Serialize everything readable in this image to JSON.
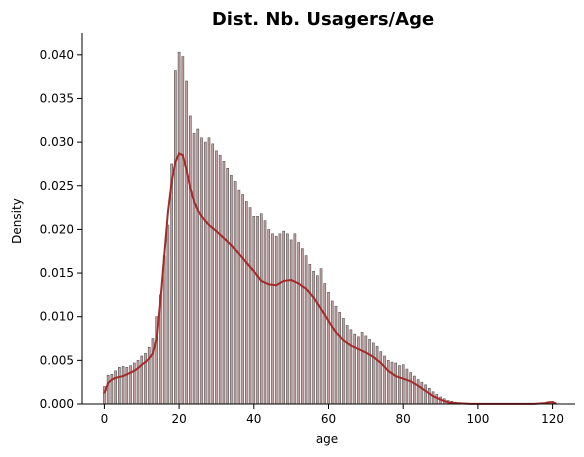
{
  "chart_data": {
    "type": "bar",
    "title": "Dist. Nb. Usagers/Age",
    "xlabel": "age",
    "ylabel": "Density",
    "xlim": [
      -6,
      126
    ],
    "ylim": [
      0,
      0.0425
    ],
    "x_ticks": [
      0,
      20,
      40,
      60,
      80,
      100,
      120
    ],
    "y_ticks": [
      0.0,
      0.005,
      0.01,
      0.015,
      0.02,
      0.025,
      0.03,
      0.035,
      0.04
    ],
    "y_tick_labels": [
      "0.000",
      "0.005",
      "0.010",
      "0.015",
      "0.020",
      "0.025",
      "0.030",
      "0.035",
      "0.040"
    ],
    "grid": false,
    "bar_color": "#bc8f8f",
    "bar_edge_color": "#555555",
    "kde_color": "#a52a2a",
    "histogram": {
      "ages": [
        0,
        1,
        2,
        3,
        4,
        5,
        6,
        7,
        8,
        9,
        10,
        11,
        12,
        13,
        14,
        15,
        16,
        17,
        18,
        19,
        20,
        21,
        22,
        23,
        24,
        25,
        26,
        27,
        28,
        29,
        30,
        31,
        32,
        33,
        34,
        35,
        36,
        37,
        38,
        39,
        40,
        41,
        42,
        43,
        44,
        45,
        46,
        47,
        48,
        49,
        50,
        51,
        52,
        53,
        54,
        55,
        56,
        57,
        58,
        59,
        60,
        61,
        62,
        63,
        64,
        65,
        66,
        67,
        68,
        69,
        70,
        71,
        72,
        73,
        74,
        75,
        76,
        77,
        78,
        79,
        80,
        81,
        82,
        83,
        84,
        85,
        86,
        87,
        88,
        89,
        90,
        91,
        92,
        93,
        94,
        95,
        96,
        97,
        98,
        99,
        100,
        101,
        102,
        103,
        104,
        105,
        106,
        107,
        108,
        109,
        110,
        111,
        112,
        113,
        114,
        115,
        116,
        117,
        118,
        119,
        120
      ],
      "density": [
        0.002,
        0.0033,
        0.0034,
        0.0038,
        0.0042,
        0.0043,
        0.0042,
        0.0044,
        0.0047,
        0.005,
        0.0055,
        0.0058,
        0.0065,
        0.0075,
        0.01,
        0.0125,
        0.017,
        0.0205,
        0.0275,
        0.0382,
        0.0403,
        0.0398,
        0.037,
        0.033,
        0.031,
        0.0315,
        0.0305,
        0.03,
        0.0305,
        0.0298,
        0.029,
        0.0285,
        0.0278,
        0.027,
        0.0262,
        0.0255,
        0.0245,
        0.024,
        0.0232,
        0.0225,
        0.0215,
        0.0215,
        0.0218,
        0.021,
        0.02,
        0.0195,
        0.0192,
        0.0195,
        0.0198,
        0.0195,
        0.0188,
        0.0195,
        0.0185,
        0.0178,
        0.017,
        0.016,
        0.0152,
        0.0147,
        0.0155,
        0.0138,
        0.0128,
        0.0118,
        0.0112,
        0.0105,
        0.0098,
        0.009,
        0.0085,
        0.008,
        0.0077,
        0.0082,
        0.0078,
        0.0074,
        0.007,
        0.0066,
        0.006,
        0.0055,
        0.005,
        0.0048,
        0.0047,
        0.0044,
        0.0045,
        0.004,
        0.0036,
        0.0032,
        0.0028,
        0.0025,
        0.0022,
        0.0018,
        0.0014,
        0.0011,
        0.0008,
        0.0006,
        0.0004,
        0.0003,
        0.0002,
        0.00015,
        0.0001,
        0.0001,
        8e-05,
        6e-05,
        5e-05,
        4e-05,
        4e-05,
        3e-05,
        3e-05,
        3e-05,
        2e-05,
        2e-05,
        2e-05,
        2e-05,
        2e-05,
        2e-05,
        2e-05,
        2e-05,
        2e-05,
        2e-05,
        2e-05,
        2e-05,
        3e-05,
        0.0001,
        0.0003
      ]
    },
    "kde": {
      "x": [
        0,
        1,
        2,
        3,
        4,
        5,
        6,
        7,
        8,
        9,
        10,
        11,
        12,
        13,
        14,
        15,
        16,
        17,
        18,
        19,
        20,
        21,
        22,
        23,
        24,
        25,
        26,
        28,
        30,
        32,
        34,
        36,
        38,
        40,
        42,
        44,
        46,
        48,
        50,
        52,
        54,
        56,
        58,
        60,
        62,
        64,
        66,
        68,
        70,
        72,
        74,
        76,
        78,
        80,
        82,
        84,
        86,
        88,
        90,
        92,
        94,
        96,
        98,
        100,
        105,
        110,
        115,
        118,
        119,
        120,
        121
      ],
      "y": [
        0.0012,
        0.0024,
        0.0028,
        0.003,
        0.0031,
        0.0032,
        0.0034,
        0.0036,
        0.0038,
        0.0041,
        0.0045,
        0.0048,
        0.0052,
        0.0058,
        0.0075,
        0.012,
        0.017,
        0.022,
        0.0255,
        0.0277,
        0.0287,
        0.0285,
        0.0268,
        0.0248,
        0.0232,
        0.0222,
        0.0215,
        0.0205,
        0.0198,
        0.019,
        0.0182,
        0.0172,
        0.0162,
        0.0152,
        0.0141,
        0.0137,
        0.0136,
        0.0141,
        0.0142,
        0.0138,
        0.0132,
        0.0122,
        0.0109,
        0.0095,
        0.0082,
        0.0073,
        0.0067,
        0.0063,
        0.0059,
        0.0054,
        0.0047,
        0.0038,
        0.0032,
        0.0029,
        0.0026,
        0.0021,
        0.0015,
        0.0009,
        0.0005,
        0.0002,
        0.0001,
        5e-05,
        2e-05,
        1e-05,
        1e-05,
        1e-05,
        1e-05,
        0.0001,
        0.0002,
        0.0002,
        5e-05
      ]
    }
  }
}
